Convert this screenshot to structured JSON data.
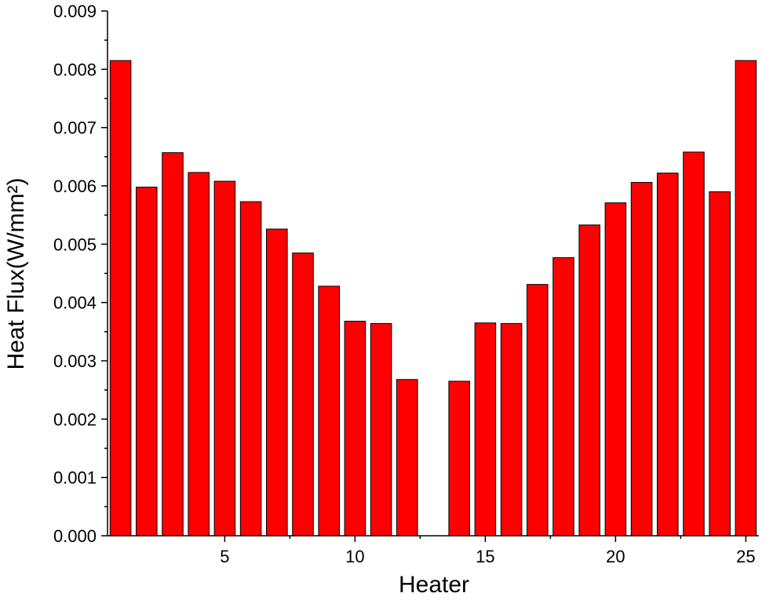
{
  "chart_data": {
    "type": "bar",
    "xlabel": "Heater",
    "ylabel": "Heat Flux(W/mm²)",
    "x": [
      1,
      2,
      3,
      4,
      5,
      6,
      7,
      8,
      9,
      10,
      11,
      12,
      13,
      14,
      15,
      16,
      17,
      18,
      19,
      20,
      21,
      22,
      23,
      24,
      25
    ],
    "values": [
      0.00815,
      0.00598,
      0.00657,
      0.00623,
      0.00608,
      0.00573,
      0.00526,
      0.00485,
      0.00428,
      0.00368,
      0.00364,
      0.00268,
      null,
      0.00265,
      0.00365,
      0.00364,
      0.00431,
      0.00477,
      0.00533,
      0.00571,
      0.00606,
      0.00622,
      0.00658,
      0.0059,
      0.00815
    ],
    "color": "#ff0000",
    "xlim": [
      0.5,
      25.5
    ],
    "xticks": [
      5,
      10,
      15,
      20,
      25
    ],
    "ylim": [
      0,
      0.009
    ],
    "yticks": [
      {
        "value": 0,
        "label": "0.000"
      },
      0.001,
      0.002,
      0.003,
      0.004,
      0.005,
      0.006,
      0.007,
      0.008,
      0.009
    ],
    "grid": false
  }
}
